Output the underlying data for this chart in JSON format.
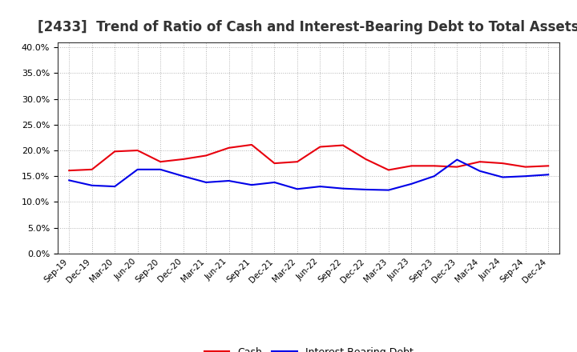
{
  "title": "[2433]  Trend of Ratio of Cash and Interest-Bearing Debt to Total Assets",
  "x_labels": [
    "Sep-19",
    "Dec-19",
    "Mar-20",
    "Jun-20",
    "Sep-20",
    "Dec-20",
    "Mar-21",
    "Jun-21",
    "Sep-21",
    "Dec-21",
    "Mar-22",
    "Jun-22",
    "Sep-22",
    "Dec-22",
    "Mar-23",
    "Jun-23",
    "Sep-23",
    "Dec-23",
    "Mar-24",
    "Jun-24",
    "Sep-24",
    "Dec-24"
  ],
  "cash": [
    0.161,
    0.163,
    0.198,
    0.2,
    0.178,
    0.183,
    0.19,
    0.205,
    0.211,
    0.175,
    0.178,
    0.207,
    0.21,
    0.183,
    0.162,
    0.17,
    0.17,
    0.168,
    0.178,
    0.175,
    0.168,
    0.17
  ],
  "debt": [
    0.142,
    0.132,
    0.13,
    0.163,
    0.163,
    0.15,
    0.138,
    0.141,
    0.133,
    0.138,
    0.125,
    0.13,
    0.126,
    0.124,
    0.123,
    0.135,
    0.15,
    0.182,
    0.16,
    0.148,
    0.15,
    0.153
  ],
  "cash_color": "#e8000d",
  "debt_color": "#0000e8",
  "ylim": [
    0.0,
    0.41
  ],
  "yticks": [
    0.0,
    0.05,
    0.1,
    0.15,
    0.2,
    0.25,
    0.3,
    0.35,
    0.4
  ],
  "background_color": "#ffffff",
  "grid_color": "#aaaaaa",
  "title_fontsize": 12,
  "legend_cash": "Cash",
  "legend_debt": "Interest-Bearing Debt"
}
